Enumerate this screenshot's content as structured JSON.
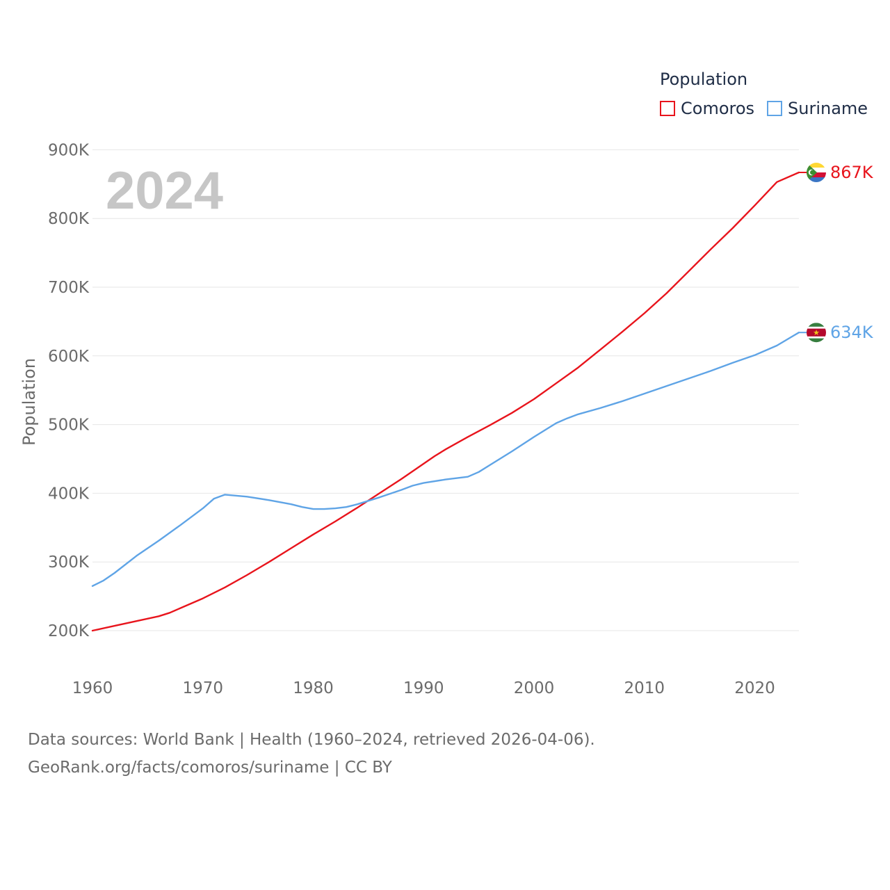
{
  "legend": {
    "title": "Population",
    "items": [
      {
        "label": "Comoros",
        "color": "#e8141c"
      },
      {
        "label": "Suriname",
        "color": "#5fa4e6"
      }
    ]
  },
  "source": {
    "line1": "Data sources: World Bank | Health (1960–2024, retrieved 2026-04-06).",
    "line2": "GeoRank.org/facts/comoros/suriname | CC BY"
  },
  "chart_data": {
    "type": "line",
    "title": "Population",
    "year_label": "2024",
    "xlabel": "",
    "ylabel": "Population",
    "xlim": [
      1960,
      2024
    ],
    "ylim": [
      150000,
      900000
    ],
    "x_ticks": [
      1960,
      1970,
      1980,
      1990,
      2000,
      2010,
      2020
    ],
    "y_ticks": [
      {
        "value": 200000,
        "label": "200K"
      },
      {
        "value": 300000,
        "label": "300K"
      },
      {
        "value": 400000,
        "label": "400K"
      },
      {
        "value": 500000,
        "label": "500K"
      },
      {
        "value": 600000,
        "label": "600K"
      },
      {
        "value": 700000,
        "label": "700K"
      },
      {
        "value": 800000,
        "label": "800K"
      },
      {
        "value": 900000,
        "label": "900K"
      }
    ],
    "grid": true,
    "legend_position": "top-right",
    "series": [
      {
        "name": "Comoros",
        "color": "#e8141c",
        "end_label": "867K",
        "flag": "comoros-flag",
        "x": [
          1960,
          1962,
          1964,
          1966,
          1967,
          1968,
          1970,
          1972,
          1974,
          1976,
          1978,
          1980,
          1982,
          1984,
          1986,
          1988,
          1990,
          1991,
          1992,
          1994,
          1996,
          1998,
          2000,
          2002,
          2004,
          2006,
          2008,
          2010,
          2012,
          2014,
          2016,
          2018,
          2020,
          2022,
          2024
        ],
        "values": [
          200000,
          207000,
          214000,
          221000,
          226000,
          233000,
          247000,
          263000,
          281000,
          300000,
          320000,
          340000,
          359000,
          379000,
          400000,
          421000,
          443000,
          454000,
          464000,
          482000,
          499000,
          517000,
          537000,
          560000,
          583000,
          609000,
          635000,
          662000,
          691000,
          723000,
          755000,
          786000,
          819000,
          853000,
          867000
        ]
      },
      {
        "name": "Suriname",
        "color": "#5fa4e6",
        "end_label": "634K",
        "flag": "suriname-flag",
        "x": [
          1960,
          1961,
          1962,
          1964,
          1966,
          1968,
          1970,
          1971,
          1972,
          1974,
          1976,
          1978,
          1979,
          1980,
          1981,
          1982,
          1983,
          1984,
          1986,
          1988,
          1989,
          1990,
          1992,
          1994,
          1995,
          1996,
          1998,
          2000,
          2002,
          2003,
          2004,
          2006,
          2008,
          2010,
          2012,
          2014,
          2016,
          2018,
          2020,
          2022,
          2024
        ],
        "values": [
          265000,
          273000,
          284000,
          309000,
          331000,
          354000,
          378000,
          392000,
          398000,
          395000,
          390000,
          384000,
          380000,
          377000,
          377000,
          378000,
          380000,
          384000,
          394000,
          405000,
          411000,
          415000,
          420000,
          424000,
          431000,
          441000,
          461000,
          482000,
          502000,
          509000,
          515000,
          524000,
          534000,
          545000,
          556000,
          567000,
          578000,
          590000,
          601000,
          615000,
          634000
        ]
      }
    ]
  }
}
